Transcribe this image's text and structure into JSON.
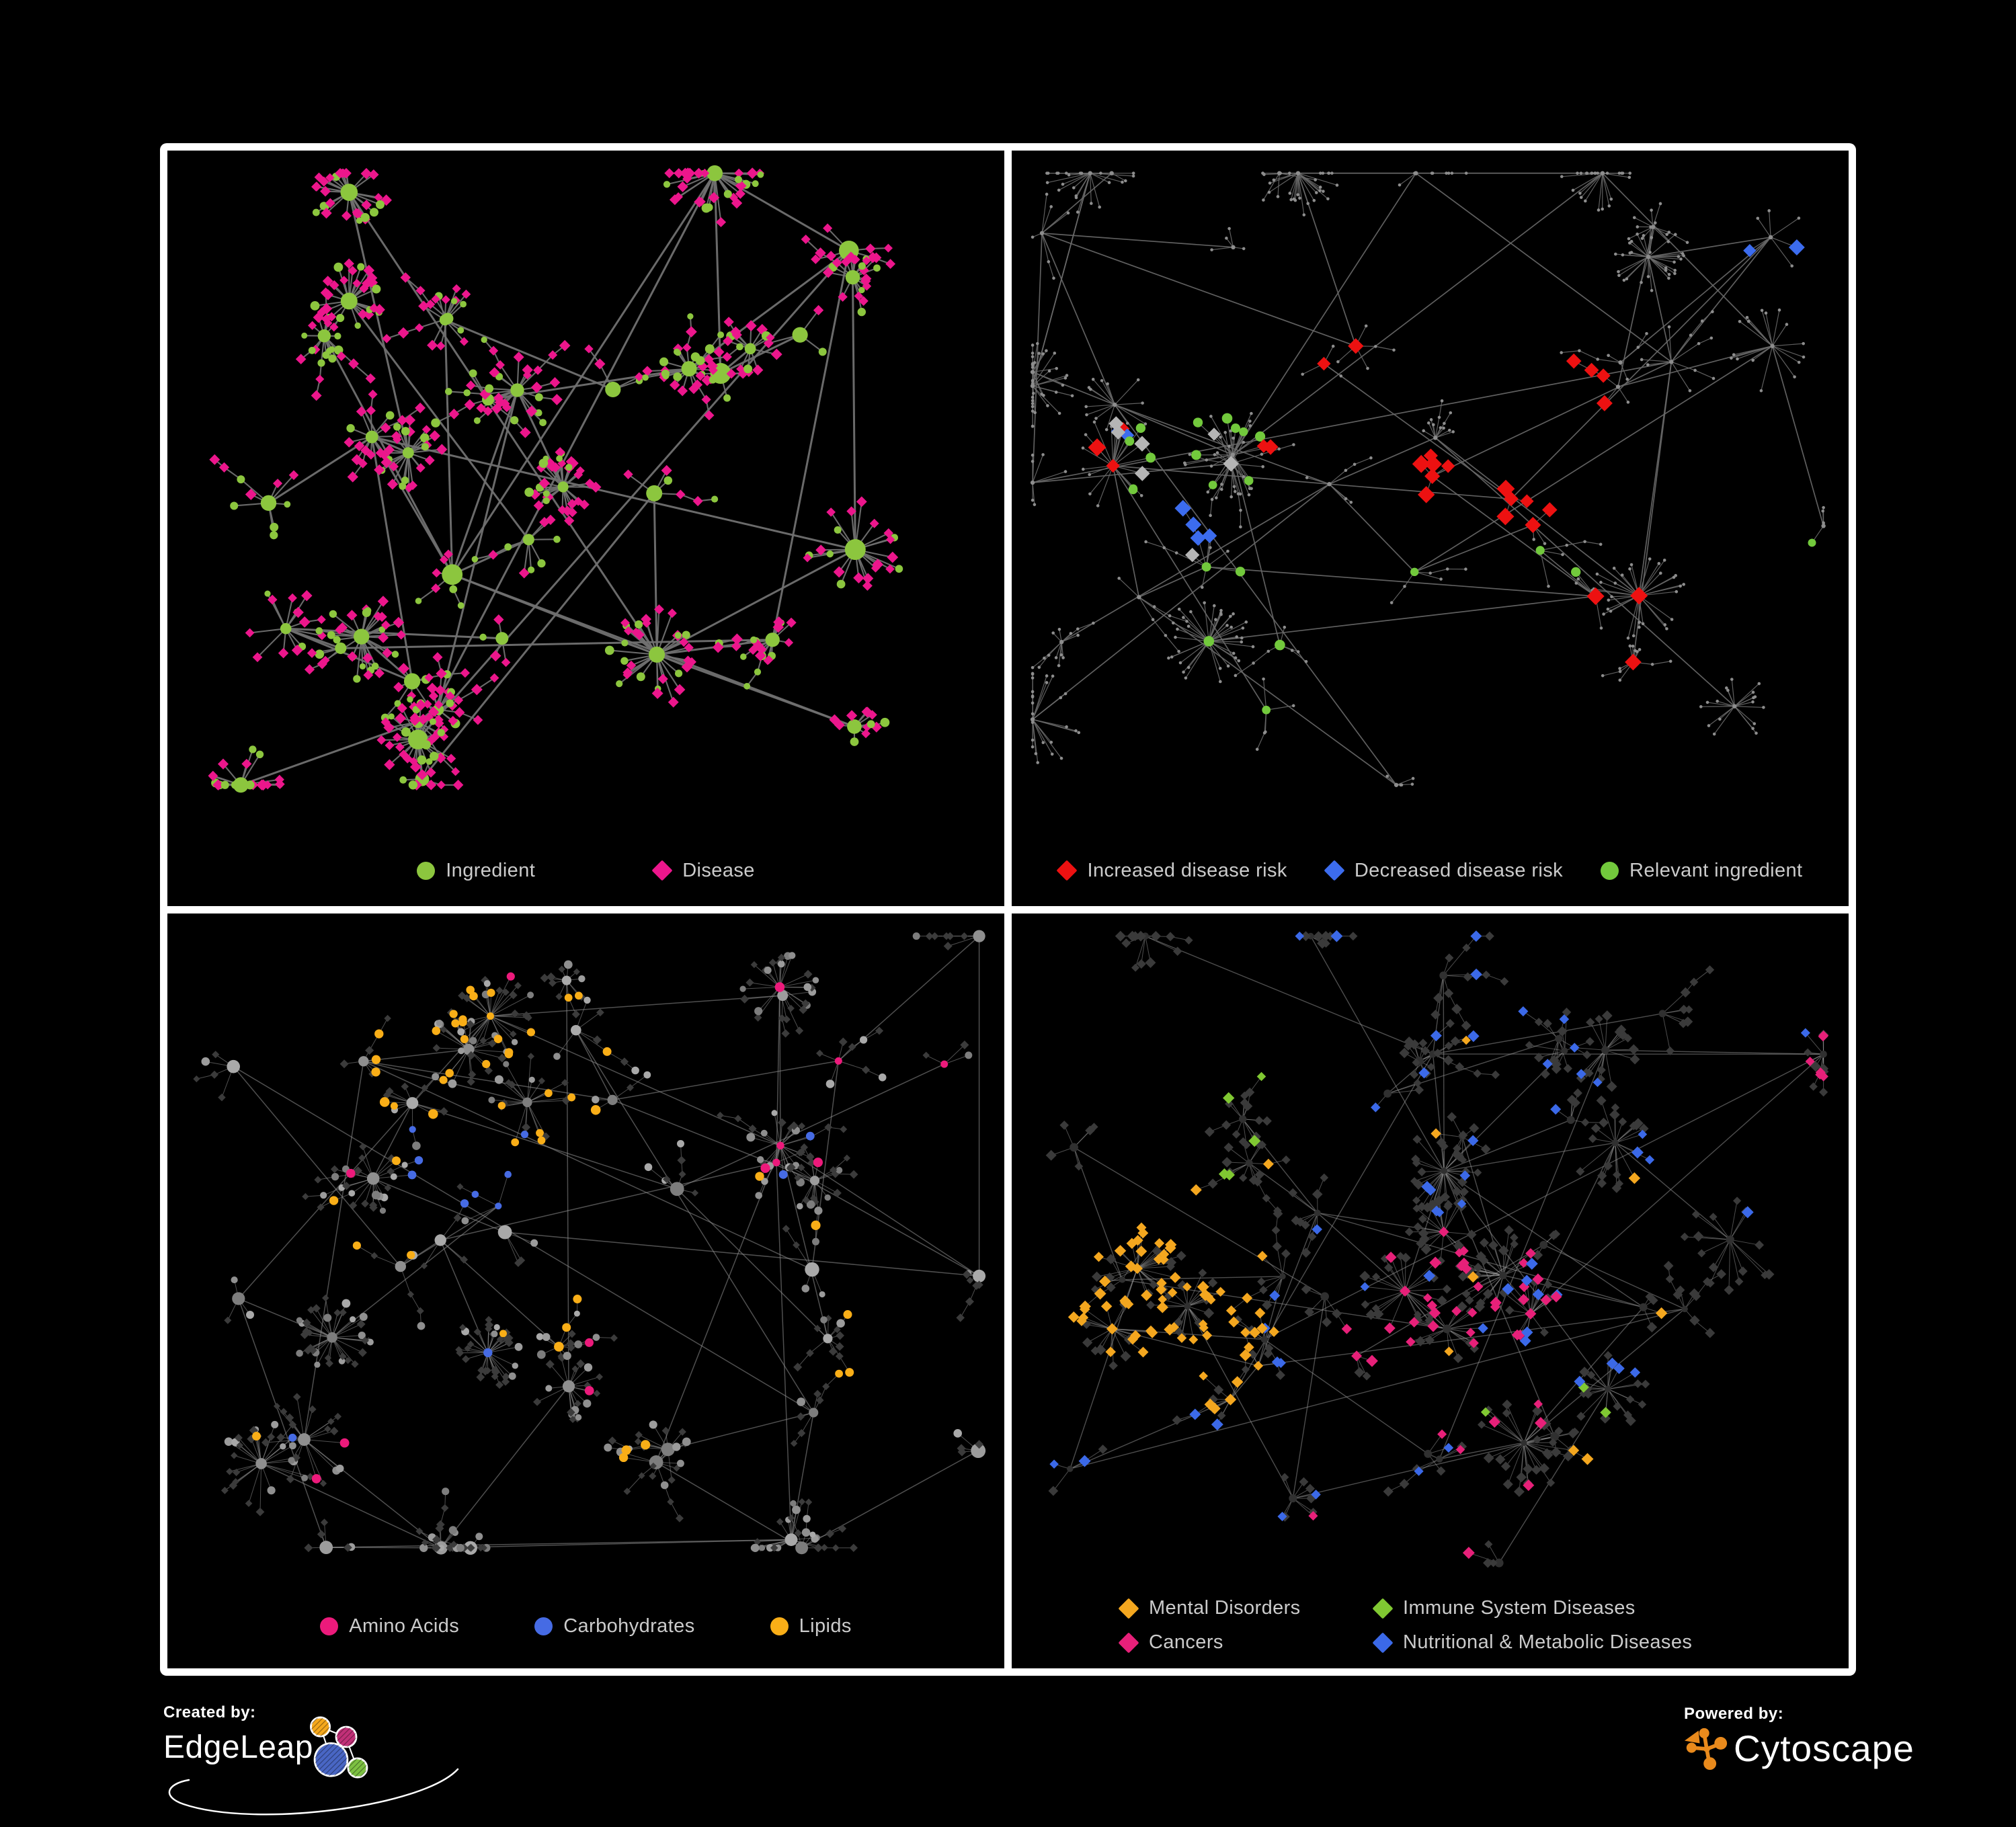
{
  "poster": {
    "background": "#000000",
    "frame_color": "#ffffff"
  },
  "footer": {
    "created_by_label": "Created by:",
    "created_by_name": "EdgeLeap",
    "powered_by_label": "Powered by:",
    "powered_by_name": "Cytoscape",
    "cytoscape_orange": "#E98A1C",
    "edgeleap_colors": {
      "orange": "#F5A81C",
      "pink": "#C13078",
      "blue": "#4966C4",
      "green": "#7DC142"
    }
  },
  "panels": [
    {
      "id": "ingredient-disease",
      "position": "top-left",
      "legend": [
        {
          "label": "Ingredient",
          "shape": "circle",
          "color": "#8CC63E"
        },
        {
          "label": "Disease",
          "shape": "diamond",
          "color": "#EC168C"
        }
      ],
      "render": {
        "mode": "two-class",
        "seed": 11,
        "hubs": 36,
        "leafMax": 24,
        "ymax": 0.84,
        "ingredientRatio": 0.3,
        "colors": {
          "ingredient": "#8CC63E",
          "disease": "#EC168C"
        },
        "edge": {
          "color": "#707070",
          "trunk": 3,
          "spoke": 2.1,
          "opacity": 0.95
        }
      }
    },
    {
      "id": "disease-risk",
      "position": "top-right",
      "legend": [
        {
          "label": "Increased disease risk",
          "shape": "diamond",
          "color": "#ED1111"
        },
        {
          "label": "Decreased disease risk",
          "shape": "diamond",
          "color": "#3C6CEE"
        },
        {
          "label": "Relevant ingredient",
          "shape": "circle",
          "color": "#72C93C"
        }
      ],
      "render": {
        "mode": "dots",
        "seed": 22,
        "hubs": 44,
        "leafMax": 18,
        "ymax": 0.84,
        "colors": {
          "base": "#8D8D8D"
        },
        "edge": {
          "color": "#696969",
          "trunk": 1.7,
          "spoke": 1.2,
          "opacity": 0.9
        },
        "highlights": [
          {
            "shape": "diamond",
            "color": "#ED1111",
            "size": 12,
            "count": 20,
            "region": [
              0.3,
              0.22,
              0.72,
              0.5
            ],
            "applyTo": "any"
          },
          {
            "shape": "diamond",
            "color": "#ED1111",
            "size": 12,
            "count": 4,
            "region": [
              0.08,
              0.28,
              0.28,
              0.44
            ],
            "applyTo": "any"
          },
          {
            "shape": "diamond",
            "color": "#ED1111",
            "size": 12,
            "count": 3,
            "region": [
              0.58,
              0.56,
              0.84,
              0.74
            ],
            "applyTo": "any"
          },
          {
            "shape": "diamond",
            "color": "#3C6CEE",
            "size": 11,
            "count": 6,
            "region": [
              0.08,
              0.28,
              0.26,
              0.52
            ],
            "applyTo": "any"
          },
          {
            "shape": "diamond",
            "color": "#3C6CEE",
            "size": 11,
            "count": 2,
            "region": [
              0.8,
              0.12,
              0.97,
              0.26
            ],
            "applyTo": "any"
          },
          {
            "shape": "diamond",
            "color": "#B5B5B5",
            "size": 11,
            "count": 7,
            "region": [
              0.1,
              0.22,
              0.62,
              0.54
            ],
            "applyTo": "any"
          },
          {
            "shape": "circle",
            "color": "#72C93C",
            "size": 7,
            "count": 18,
            "region": [
              0.14,
              0.2,
              0.72,
              0.56
            ],
            "applyTo": "any"
          },
          {
            "shape": "circle",
            "color": "#72C93C",
            "size": 7,
            "count": 3,
            "region": [
              0.2,
              0.56,
              0.55,
              0.76
            ],
            "applyTo": "any"
          },
          {
            "shape": "circle",
            "color": "#72C93C",
            "size": 7,
            "count": 3,
            "region": [
              0.86,
              0.5,
              0.99,
              0.64
            ],
            "applyTo": "any"
          }
        ]
      }
    },
    {
      "id": "nutrients",
      "position": "bottom-left",
      "legend": [
        {
          "label": "Amino Acids",
          "shape": "circle",
          "color": "#EC1A7B"
        },
        {
          "label": "Carbohydrates",
          "shape": "circle",
          "color": "#466BE4"
        },
        {
          "label": "Lipids",
          "shape": "circle",
          "color": "#F9AE17"
        }
      ],
      "render": {
        "mode": "nutrient",
        "seed": 33,
        "hubs": 40,
        "leafMax": 22,
        "ymax": 0.84,
        "extraHubs": [
          [
            0.36,
            0.18,
            26
          ],
          [
            0.43,
            0.25,
            22
          ]
        ],
        "colors": {
          "diamond": "#3B3B3B",
          "grays": [
            "#8f8f8f",
            "#9c9c9c",
            "#a9a9a9",
            "#7d7d7d"
          ]
        },
        "edge": {
          "color": "#909090",
          "trunk": 1.5,
          "spoke": 1.0,
          "opacity": 0.55
        },
        "highlights": [
          {
            "shape": "circle",
            "color": "#F9AE17",
            "size": 6.5,
            "count": 34,
            "region": [
              0.24,
              0.1,
              0.54,
              0.34
            ],
            "applyTo": "any"
          },
          {
            "shape": "circle",
            "color": "#F9AE17",
            "size": 6.5,
            "count": 16,
            "region": [
              0.1,
              0.32,
              0.86,
              0.74
            ],
            "applyTo": "circle"
          },
          {
            "shape": "circle",
            "color": "#EC1A7B",
            "size": 6.5,
            "count": 13,
            "region": [
              0.04,
              0.06,
              0.96,
              0.8
            ],
            "applyTo": "circle"
          },
          {
            "shape": "circle",
            "color": "#466BE4",
            "size": 6,
            "count": 8,
            "region": [
              0.28,
              0.26,
              0.46,
              0.42
            ],
            "applyTo": "any"
          },
          {
            "shape": "circle",
            "color": "#466BE4",
            "size": 6,
            "count": 4,
            "region": [
              0.05,
              0.1,
              0.95,
              0.7
            ],
            "applyTo": "circle"
          }
        ]
      }
    },
    {
      "id": "disease-classes",
      "position": "bottom-right",
      "legend": [
        {
          "label": "Mental Disorders",
          "shape": "diamond",
          "color": "#F4A71F"
        },
        {
          "label": "Immune System Diseases",
          "shape": "diamond",
          "color": "#80C832"
        },
        {
          "label": "Cancers",
          "shape": "diamond",
          "color": "#E72079"
        },
        {
          "label": "Nutritional & Metabolic Diseases",
          "shape": "diamond",
          "color": "#3B69E8"
        }
      ],
      "render": {
        "mode": "disease-class",
        "seed": 44,
        "hubs": 40,
        "leafMax": 20,
        "ymax": 0.86,
        "extraHubs": [
          [
            0.15,
            0.47,
            30
          ],
          [
            0.21,
            0.52,
            26
          ],
          [
            0.12,
            0.55,
            20
          ],
          [
            0.47,
            0.5,
            24
          ],
          [
            0.52,
            0.55,
            20
          ],
          [
            0.62,
            0.53,
            18
          ]
        ],
        "colors": {
          "circle": "#303030",
          "diamond": "#3A3A3A"
        },
        "edge": {
          "color": "#9A9A9A",
          "trunk": 1.4,
          "spoke": 1.0,
          "opacity": 0.5
        },
        "highlights": [
          {
            "shape": "diamond",
            "color": "#F4A71F",
            "size": 8,
            "count": 70,
            "region": [
              0.05,
              0.36,
              0.3,
              0.66
            ],
            "applyTo": "any"
          },
          {
            "shape": "diamond",
            "color": "#F4A71F",
            "size": 8,
            "count": 10,
            "region": [
              0.1,
              0.06,
              0.92,
              0.86
            ],
            "applyTo": "diamond"
          },
          {
            "shape": "diamond",
            "color": "#E72079",
            "size": 8,
            "count": 36,
            "region": [
              0.38,
              0.4,
              0.66,
              0.64
            ],
            "applyTo": "any"
          },
          {
            "shape": "diamond",
            "color": "#E72079",
            "size": 8,
            "count": 6,
            "region": [
              0.84,
              0.16,
              0.99,
              0.3
            ],
            "applyTo": "diamond"
          },
          {
            "shape": "diamond",
            "color": "#E72079",
            "size": 8,
            "count": 8,
            "region": [
              0.1,
              0.6,
              0.9,
              0.9
            ],
            "applyTo": "diamond"
          },
          {
            "shape": "diamond",
            "color": "#3B69E8",
            "size": 8,
            "count": 12,
            "region": [
              0.56,
              0.46,
              0.75,
              0.62
            ],
            "applyTo": "any"
          },
          {
            "shape": "diamond",
            "color": "#3B69E8",
            "size": 8,
            "count": 28,
            "region": [
              0.3,
              0.02,
              0.99,
              0.45
            ],
            "applyTo": "diamond"
          },
          {
            "shape": "diamond",
            "color": "#3B69E8",
            "size": 8,
            "count": 14,
            "region": [
              0.04,
              0.45,
              0.55,
              0.92
            ],
            "applyTo": "diamond"
          },
          {
            "shape": "diamond",
            "color": "#80C832",
            "size": 8,
            "count": 8,
            "region": [
              0.18,
              0.1,
              0.82,
              0.85
            ],
            "applyTo": "diamond"
          }
        ]
      }
    }
  ],
  "chart_data": [
    {
      "type": "network",
      "panel": "top-left",
      "title": "",
      "legend": [
        {
          "label": "Ingredient",
          "shape": "circle",
          "color": "#8CC63E"
        },
        {
          "label": "Disease",
          "shape": "diamond",
          "color": "#EC168C"
        }
      ],
      "node_classes": [
        {
          "name": "Ingredient",
          "shape": "circle",
          "color": "#8CC63E",
          "approx_count": 200,
          "note": "sized by connectivity, larger hubs in center"
        },
        {
          "name": "Disease",
          "shape": "diamond",
          "color": "#EC168C",
          "approx_count": 400,
          "note": "mostly small leaf nodes in radial bursts"
        }
      ],
      "edges": {
        "color": "#707070",
        "style": "straight gray lines, hub-and-spoke clusters"
      }
    },
    {
      "type": "network",
      "panel": "top-right",
      "title": "",
      "legend": [
        {
          "label": "Increased disease risk",
          "shape": "diamond",
          "color": "#ED1111"
        },
        {
          "label": "Decreased disease risk",
          "shape": "diamond",
          "color": "#3C6CEE"
        },
        {
          "label": "Relevant ingredient",
          "shape": "circle",
          "color": "#72C93C"
        }
      ],
      "node_classes": [
        {
          "name": "Increased disease risk",
          "shape": "diamond",
          "color": "#ED1111",
          "approx_count": 27,
          "note": "concentrated in central band, a few lower right"
        },
        {
          "name": "Decreased disease risk",
          "shape": "diamond",
          "color": "#3C6CEE",
          "approx_count": 8,
          "note": "cluster left of center plus pair at upper right"
        },
        {
          "name": "Unclassified risk",
          "shape": "diamond",
          "color": "#B5B5B5",
          "approx_count": 7
        },
        {
          "name": "Relevant ingredient",
          "shape": "circle",
          "color": "#72C93C",
          "approx_count": 24
        },
        {
          "name": "Other node",
          "shape": "dot",
          "color": "#8D8D8D",
          "approx_count": 550
        }
      ],
      "edges": {
        "color": "#696969",
        "style": "thin gray lines, sparse tree-like branches"
      }
    },
    {
      "type": "network",
      "panel": "bottom-left",
      "title": "",
      "legend": [
        {
          "label": "Amino Acids",
          "shape": "circle",
          "color": "#EC1A7B"
        },
        {
          "label": "Carbohydrates",
          "shape": "circle",
          "color": "#466BE4"
        },
        {
          "label": "Lipids",
          "shape": "circle",
          "color": "#F9AE17"
        }
      ],
      "node_classes": [
        {
          "name": "Lipids",
          "shape": "circle",
          "color": "#F9AE17",
          "approx_count": 50,
          "note": "dense cluster upper middle plus scattered"
        },
        {
          "name": "Amino Acids",
          "shape": "circle",
          "color": "#EC1A7B",
          "approx_count": 13,
          "note": "scattered"
        },
        {
          "name": "Carbohydrates",
          "shape": "circle",
          "color": "#466BE4",
          "approx_count": 12,
          "note": "small central cluster"
        },
        {
          "name": "Other ingredient",
          "shape": "circle",
          "color": "#9C9C9C",
          "approx_count": 180
        },
        {
          "name": "Disease",
          "shape": "diamond",
          "color": "#3B3B3B",
          "approx_count": 380,
          "note": "dim dark diamonds"
        }
      ],
      "edges": {
        "color": "#909090",
        "style": "thin light-gray lines, dense hairball clusters"
      }
    },
    {
      "type": "network",
      "panel": "bottom-right",
      "title": "",
      "legend": [
        {
          "label": "Mental Disorders",
          "shape": "diamond",
          "color": "#F4A71F"
        },
        {
          "label": "Immune System Diseases",
          "shape": "diamond",
          "color": "#80C832"
        },
        {
          "label": "Cancers",
          "shape": "diamond",
          "color": "#E72079"
        },
        {
          "label": "Nutritional & Metabolic Diseases",
          "shape": "diamond",
          "color": "#3B69E8"
        }
      ],
      "node_classes": [
        {
          "name": "Mental Disorders",
          "shape": "diamond",
          "color": "#F4A71F",
          "approx_count": 80,
          "note": "large dense cluster left of center"
        },
        {
          "name": "Cancers",
          "shape": "diamond",
          "color": "#E72079",
          "approx_count": 50,
          "note": "central cluster plus upper-right group"
        },
        {
          "name": "Nutritional & Metabolic Diseases",
          "shape": "diamond",
          "color": "#3B69E8",
          "approx_count": 54,
          "note": "scattered top and right, small right-center cluster"
        },
        {
          "name": "Immune System Diseases",
          "shape": "diamond",
          "color": "#80C832",
          "approx_count": 8,
          "note": "few scattered"
        },
        {
          "name": "Other disease",
          "shape": "diamond",
          "color": "#3A3A3A",
          "approx_count": 400
        },
        {
          "name": "Ingredient",
          "shape": "circle",
          "color": "#303030",
          "approx_count": 150
        }
      ],
      "edges": {
        "color": "#9A9A9A",
        "style": "thin light-gray lines"
      }
    }
  ]
}
